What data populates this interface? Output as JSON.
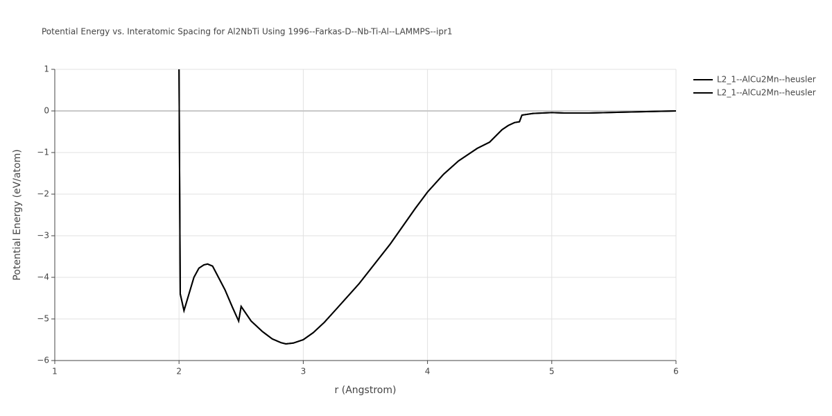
{
  "chart_data": {
    "type": "line",
    "title": "Potential Energy vs. Interatomic Spacing for Al2NbTi Using 1996--Farkas-D--Nb-Ti-Al--LAMMPS--ipr1",
    "xlabel": "r (Angstrom)",
    "ylabel": "Potential Energy (eV/atom)",
    "x": [
      2.0,
      2.01,
      2.04,
      2.08,
      2.12,
      2.16,
      2.2,
      2.23,
      2.27,
      2.3,
      2.37,
      2.43,
      2.48,
      2.5,
      2.58,
      2.67,
      2.75,
      2.82,
      2.86,
      2.92,
      3.0,
      3.08,
      3.17,
      3.27,
      3.45,
      3.7,
      3.9,
      4.0,
      4.13,
      4.25,
      4.4,
      4.5,
      4.6,
      4.65,
      4.7,
      4.74,
      4.76,
      4.85,
      5.0,
      5.1,
      5.3,
      6.0
    ],
    "series": [
      {
        "name": "L2_1--AlCu2Mn--heusler",
        "color": "#000000",
        "values": [
          1.0,
          -4.4,
          -4.8,
          -4.4,
          -4.0,
          -3.78,
          -3.7,
          -3.68,
          -3.73,
          -3.9,
          -4.3,
          -4.72,
          -5.05,
          -4.7,
          -5.05,
          -5.3,
          -5.48,
          -5.57,
          -5.6,
          -5.58,
          -5.5,
          -5.33,
          -5.08,
          -4.75,
          -4.15,
          -3.2,
          -2.35,
          -1.95,
          -1.52,
          -1.2,
          -0.9,
          -0.75,
          -0.45,
          -0.35,
          -0.28,
          -0.26,
          -0.1,
          -0.06,
          -0.04,
          -0.05,
          -0.05,
          0.0
        ]
      },
      {
        "name": "L2_1--AlCu2Mn--heusler",
        "color": "#000000",
        "values": [
          1.0,
          -4.4,
          -4.8,
          -4.4,
          -4.0,
          -3.78,
          -3.7,
          -3.68,
          -3.73,
          -3.9,
          -4.3,
          -4.72,
          -5.05,
          -4.7,
          -5.05,
          -5.3,
          -5.48,
          -5.57,
          -5.6,
          -5.58,
          -5.5,
          -5.33,
          -5.08,
          -4.75,
          -4.15,
          -3.2,
          -2.35,
          -1.95,
          -1.52,
          -1.2,
          -0.9,
          -0.75,
          -0.45,
          -0.35,
          -0.28,
          -0.26,
          -0.1,
          -0.06,
          -0.04,
          -0.05,
          -0.05,
          0.0
        ]
      }
    ],
    "xlim": [
      1,
      6
    ],
    "xticks": [
      1,
      2,
      3,
      4,
      5,
      6
    ],
    "ylim": [
      -6,
      1
    ],
    "yticks": [
      {
        "value": -6,
        "label": "−6"
      },
      {
        "value": -5,
        "label": "−5"
      },
      {
        "value": -4,
        "label": "−4"
      },
      {
        "value": -3,
        "label": "−3"
      },
      {
        "value": -2,
        "label": "−2"
      },
      {
        "value": -1,
        "label": "−1"
      },
      0,
      1
    ],
    "grid": true
  }
}
